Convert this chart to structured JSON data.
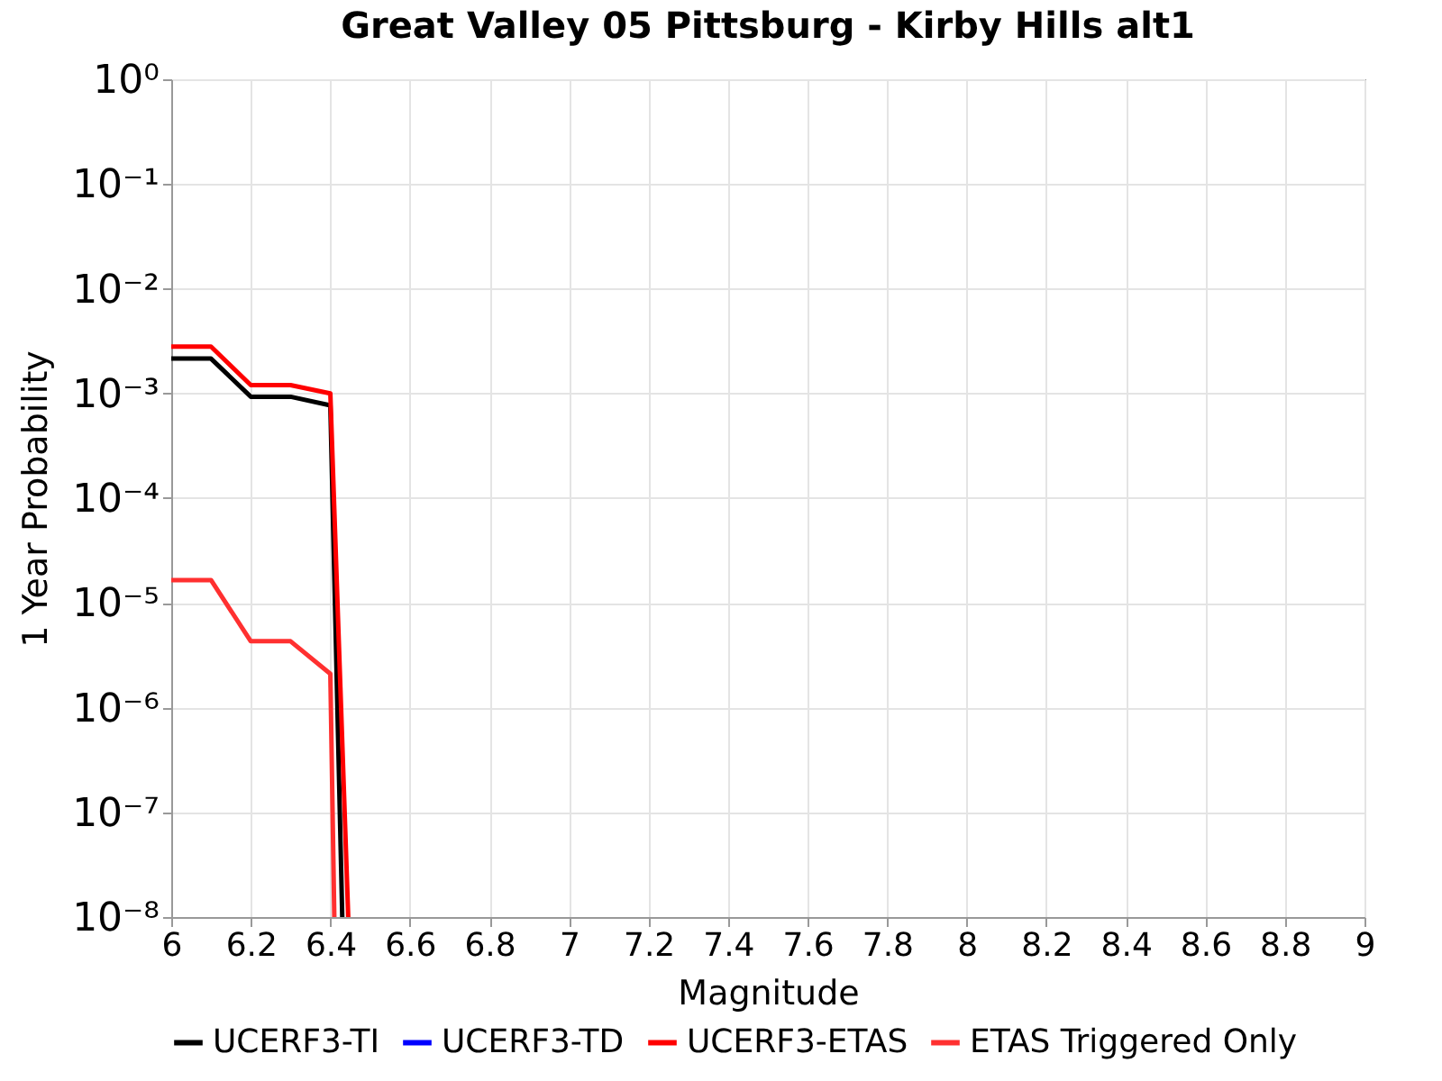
{
  "chart_data": {
    "type": "line",
    "title": "Great Valley 05 Pittsburg - Kirby Hills alt1",
    "xlabel": "Magnitude",
    "ylabel": "1 Year Probability",
    "xlim": [
      6,
      9
    ],
    "xticks": [
      6,
      6.2,
      6.4,
      6.6,
      6.8,
      7,
      7.2,
      7.4,
      7.6,
      7.8,
      8,
      8.2,
      8.4,
      8.6,
      8.8,
      9
    ],
    "ylim": [
      1e-08,
      1
    ],
    "yticks": [
      {
        "value": 1e-08,
        "label": "10⁻⁸"
      },
      {
        "value": 1e-07,
        "label": "10⁻⁷"
      },
      {
        "value": 1e-06,
        "label": "10⁻⁶"
      },
      {
        "value": 1e-05,
        "label": "10⁻⁵"
      },
      {
        "value": 0.0001,
        "label": "10⁻⁴"
      },
      {
        "value": 0.001,
        "label": "10⁻³"
      },
      {
        "value": 0.01,
        "label": "10⁻²"
      },
      {
        "value": 0.1,
        "label": "10⁻¹"
      },
      {
        "value": 1,
        "label": "10⁰"
      }
    ],
    "log": "y",
    "grid": true,
    "legend": "bottom",
    "line_style": "solid",
    "marker": "none",
    "series": [
      {
        "name": "UCERF3-TI",
        "color": "#000000",
        "x": [
          6,
          6.1,
          6.2,
          6.3,
          6.4,
          6.43
        ],
        "values": [
          0.00215,
          0.00215,
          0.00093,
          0.00093,
          0.00077,
          1e-08
        ]
      },
      {
        "name": "UCERF3-TD",
        "color": "#0000ff"
      },
      {
        "name": "UCERF3-ETAS",
        "color": "#ff0000",
        "x": [
          6,
          6.1,
          6.2,
          6.3,
          6.4,
          6.445
        ],
        "values": [
          0.0028,
          0.0028,
          0.0012,
          0.0012,
          0.001,
          1e-08
        ]
      },
      {
        "name": "ETAS Triggered Only",
        "color": "#ff3030",
        "x": [
          6,
          6.1,
          6.2,
          6.3,
          6.4,
          6.41
        ],
        "values": [
          1.65e-05,
          1.65e-05,
          4.3e-06,
          4.3e-06,
          2.1e-06,
          1e-08
        ]
      }
    ]
  }
}
